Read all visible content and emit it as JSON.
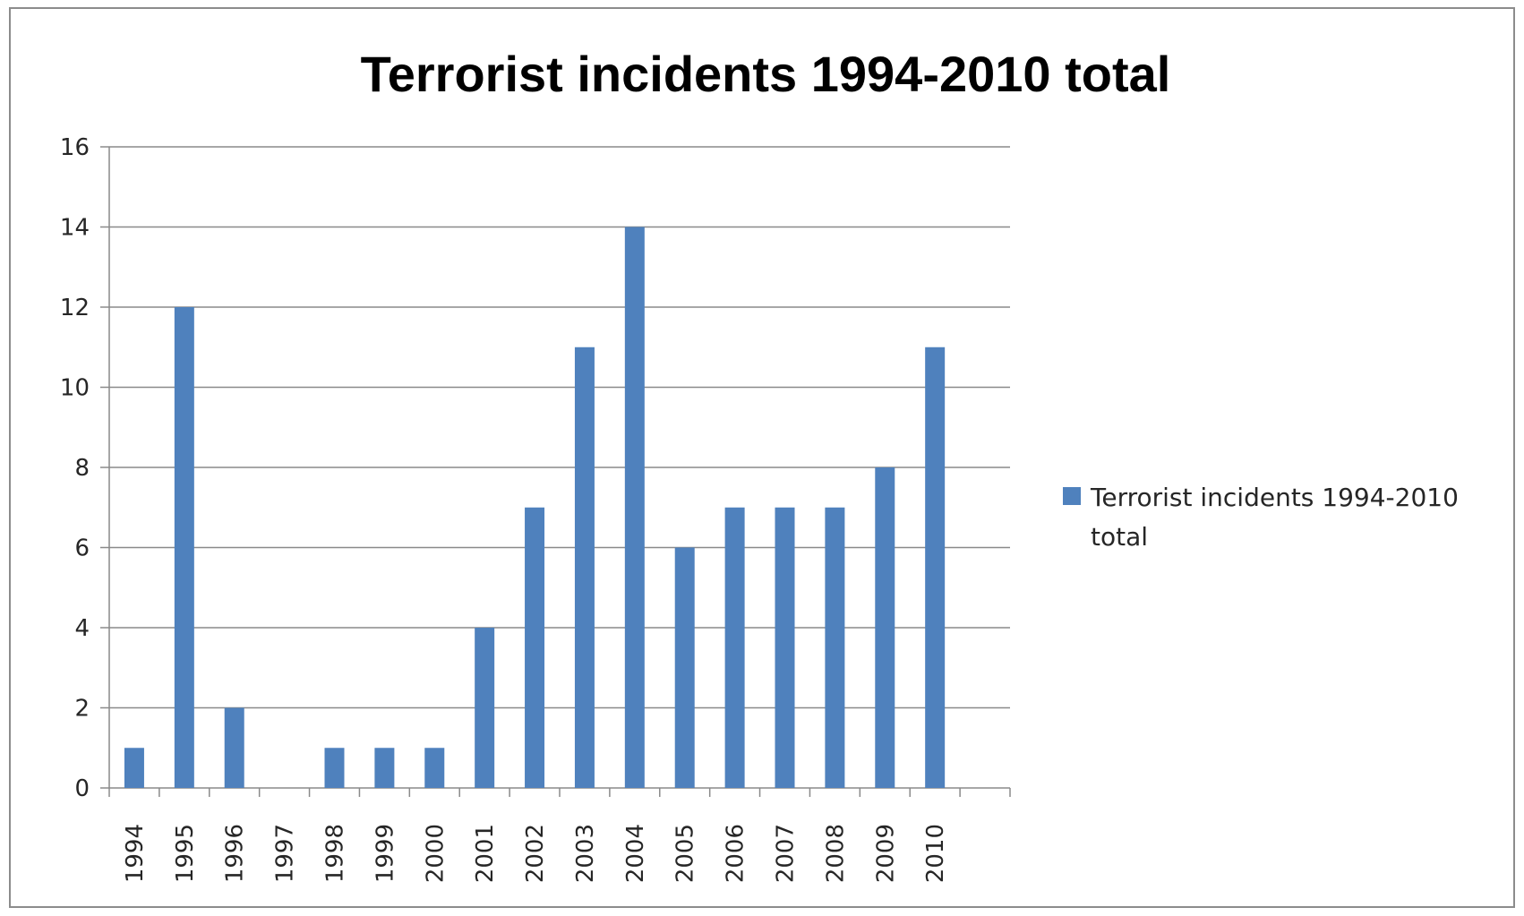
{
  "chart_data": {
    "type": "bar",
    "title": "Terrorist incidents 1994-2010 total",
    "xlabel": "",
    "ylabel": "",
    "categories": [
      "1994",
      "1995",
      "1996",
      "1997",
      "1998",
      "1999",
      "2000",
      "2001",
      "2002",
      "2003",
      "2004",
      "2005",
      "2006",
      "2007",
      "2008",
      "2009",
      "2010"
    ],
    "series": [
      {
        "name": "Terrorist incidents 1994-2010 total",
        "values": [
          1,
          12,
          2,
          0,
          1,
          1,
          1,
          4,
          7,
          11,
          14,
          6,
          7,
          7,
          7,
          8,
          11
        ],
        "color": "#4f81bd"
      }
    ],
    "ylim": [
      0,
      16
    ],
    "yticks": [
      "0",
      "2",
      "4",
      "6",
      "8",
      "10",
      "12",
      "14",
      "16"
    ],
    "grid": true,
    "legend_position": "right",
    "legend_lines": [
      "Terrorist incidents 1994-2010",
      "total"
    ]
  }
}
